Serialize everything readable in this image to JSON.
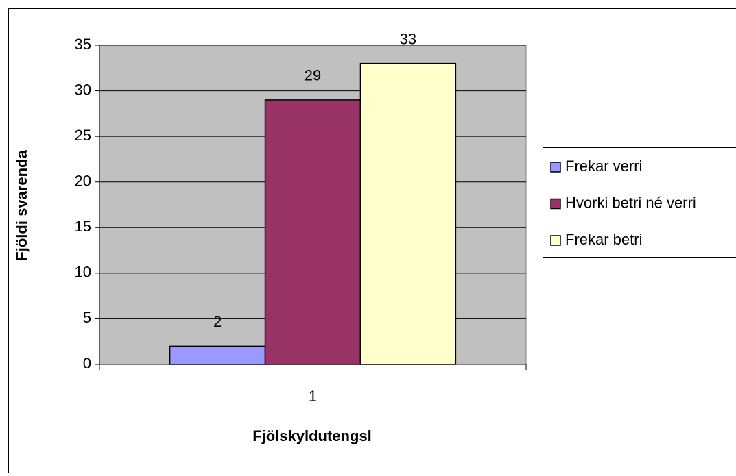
{
  "chart_data": {
    "type": "bar",
    "x_label": "Fjölskyldutengsl",
    "y_label": "Fjöldi svarenda",
    "categories": [
      "1"
    ],
    "series": [
      {
        "name": "Frekar verri",
        "color": "#9999ff",
        "values": [
          2
        ]
      },
      {
        "name": "Hvorki betri né verri",
        "color": "#993366",
        "values": [
          29
        ]
      },
      {
        "name": "Frekar betri",
        "color": "#ffffcc",
        "values": [
          33
        ]
      }
    ],
    "ylim": [
      0,
      35
    ],
    "yticks": [
      0,
      5,
      10,
      15,
      20,
      25,
      30,
      35
    ],
    "grid": true,
    "plot_background": "#c0c0c0",
    "legend": "right"
  }
}
